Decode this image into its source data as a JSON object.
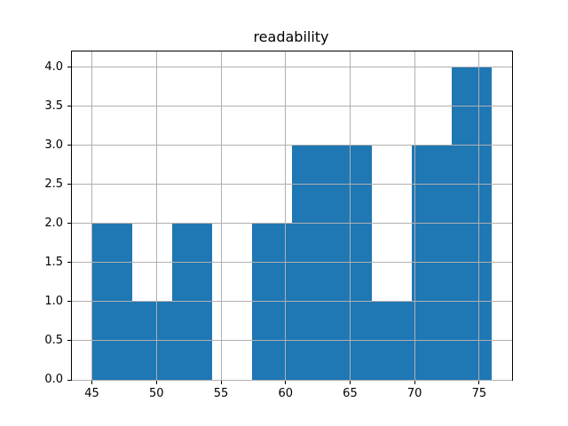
{
  "title": "readability",
  "chart_data": {
    "type": "bar",
    "subtype": "histogram",
    "title": "readability",
    "xlabel": "",
    "ylabel": "",
    "bin_edges": [
      45.0,
      48.1,
      51.2,
      54.3,
      57.4,
      60.5,
      63.6,
      66.7,
      69.8,
      72.9,
      76.0
    ],
    "counts": [
      2,
      1,
      2,
      0,
      2,
      3,
      3,
      1,
      3,
      4
    ],
    "x_tick_values": [
      45,
      50,
      55,
      60,
      65,
      70,
      75
    ],
    "x_tick_labels": [
      "45",
      "50",
      "55",
      "60",
      "65",
      "70",
      "75"
    ],
    "y_tick_values": [
      0.0,
      0.5,
      1.0,
      1.5,
      2.0,
      2.5,
      3.0,
      3.5,
      4.0
    ],
    "y_tick_labels": [
      "0.0",
      "0.5",
      "1.0",
      "1.5",
      "2.0",
      "2.5",
      "3.0",
      "3.5",
      "4.0"
    ],
    "xlim": [
      43.45,
      77.55
    ],
    "ylim": [
      0,
      4.2
    ],
    "grid": true,
    "grid_above_bars": true,
    "legend": null,
    "colors": {
      "bar": "#1f77b4",
      "grid": "#b0b0b0",
      "spine": "#000000",
      "text": "#000000",
      "background": "#ffffff"
    }
  }
}
